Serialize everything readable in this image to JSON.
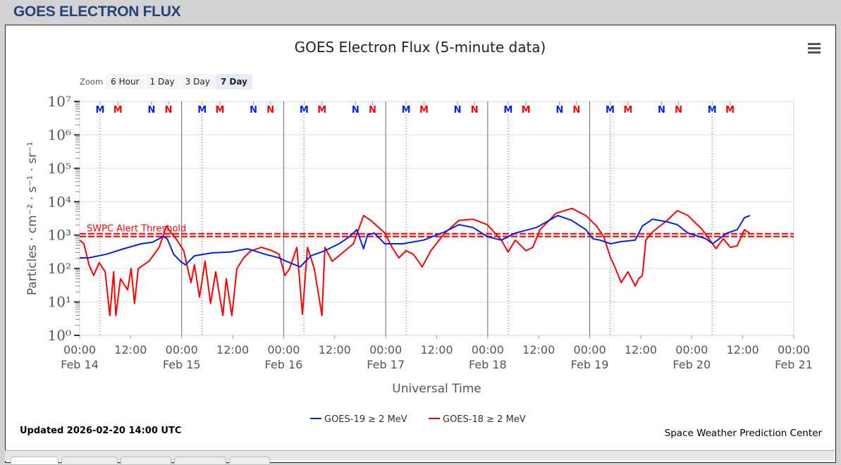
{
  "header": {
    "title": "GOES ELECTRON FLUX"
  },
  "zoom": {
    "label": "Zoom",
    "buttons": [
      "6 Hour",
      "1 Day",
      "3 Day",
      "7 Day"
    ],
    "selected": "7 Day"
  },
  "footer": {
    "updated": "Updated 2026-02-20 14:00 UTC",
    "credit": "Space Weather Prediction Center"
  },
  "colors": {
    "goes19": "#0022ee",
    "goes18": "#ff0000",
    "title_blue": "#25427a"
  },
  "chart_data": {
    "type": "line",
    "title": "GOES Electron Flux (5-minute data)",
    "xlabel": "Universal Time",
    "ylabel": "Particles · cm⁻² · s⁻¹ · sr⁻¹",
    "x_units": "hours since 2026-02-14 00:00 UTC",
    "xlim": [
      0,
      168
    ],
    "ylim": [
      1,
      10000000
    ],
    "yscale": "log",
    "y_ticks": [
      "10⁰",
      "10¹",
      "10²",
      "10³",
      "10⁴",
      "10⁵",
      "10⁶",
      "10⁷"
    ],
    "x_ticks": [
      {
        "t": "00:00",
        "d": "Feb 14"
      },
      {
        "t": "12:00",
        "d": ""
      },
      {
        "t": "00:00",
        "d": "Feb 15"
      },
      {
        "t": "12:00",
        "d": ""
      },
      {
        "t": "00:00",
        "d": "Feb 16"
      },
      {
        "t": "12:00",
        "d": ""
      },
      {
        "t": "00:00",
        "d": "Feb 17"
      },
      {
        "t": "12:00",
        "d": ""
      },
      {
        "t": "00:00",
        "d": "Feb 18"
      },
      {
        "t": "12:00",
        "d": ""
      },
      {
        "t": "00:00",
        "d": "Feb 19"
      },
      {
        "t": "12:00",
        "d": ""
      },
      {
        "t": "00:00",
        "d": "Feb 20"
      },
      {
        "t": "12:00",
        "d": ""
      },
      {
        "t": "00:00",
        "d": "Feb 21"
      }
    ],
    "threshold": {
      "label": "SWPC Alert Threshold",
      "value": 1000
    },
    "day_boundaries": [
      24,
      48,
      72,
      96,
      120
    ],
    "legend": {
      "placement": "bottom-center"
    },
    "markers": [
      {
        "label": "M",
        "sat": "goes19",
        "h": 4.8
      },
      {
        "label": "M",
        "sat": "goes18",
        "h": 9.0
      },
      {
        "label": "N",
        "sat": "goes19",
        "h": 16.9
      },
      {
        "label": "N",
        "sat": "goes18",
        "h": 20.9
      },
      {
        "label": "M",
        "sat": "goes19",
        "h": 28.8
      },
      {
        "label": "M",
        "sat": "goes18",
        "h": 33.0
      },
      {
        "label": "N",
        "sat": "goes19",
        "h": 40.9
      },
      {
        "label": "N",
        "sat": "goes18",
        "h": 44.9
      },
      {
        "label": "M",
        "sat": "goes19",
        "h": 52.8
      },
      {
        "label": "M",
        "sat": "goes18",
        "h": 57.0
      },
      {
        "label": "N",
        "sat": "goes19",
        "h": 64.9
      },
      {
        "label": "N",
        "sat": "goes18",
        "h": 68.9
      },
      {
        "label": "M",
        "sat": "goes19",
        "h": 76.8
      },
      {
        "label": "M",
        "sat": "goes18",
        "h": 81.0
      },
      {
        "label": "N",
        "sat": "goes19",
        "h": 88.9
      },
      {
        "label": "N",
        "sat": "goes18",
        "h": 92.9
      },
      {
        "label": "M",
        "sat": "goes19",
        "h": 100.8
      },
      {
        "label": "M",
        "sat": "goes18",
        "h": 105.0
      },
      {
        "label": "N",
        "sat": "goes19",
        "h": 112.9
      },
      {
        "label": "N",
        "sat": "goes18",
        "h": 116.9
      },
      {
        "label": "M",
        "sat": "goes19",
        "h": 124.8
      },
      {
        "label": "M",
        "sat": "goes18",
        "h": 129.0
      },
      {
        "label": "N",
        "sat": "goes19",
        "h": 136.9
      },
      {
        "label": "N",
        "sat": "goes18",
        "h": 140.9
      },
      {
        "label": "M",
        "sat": "goes19",
        "h": 148.8
      },
      {
        "label": "M",
        "sat": "goes18",
        "h": 153.0
      }
    ],
    "series": [
      {
        "name": "GOES-19 ≥ 2 MeV",
        "key": "goes19",
        "points": [
          [
            0,
            209
          ],
          [
            2.2,
            210
          ],
          [
            6.3,
            268
          ],
          [
            10.4,
            392
          ],
          [
            14.5,
            550
          ],
          [
            17.1,
            610
          ],
          [
            19.6,
            900
          ],
          [
            20.6,
            780
          ],
          [
            22.1,
            268
          ],
          [
            23.7,
            165
          ],
          [
            24.9,
            129
          ],
          [
            27.0,
            240
          ],
          [
            31.2,
            295
          ],
          [
            35.3,
            310
          ],
          [
            39.5,
            390
          ],
          [
            43.6,
            268
          ],
          [
            46.9,
            209
          ],
          [
            48.6,
            165
          ],
          [
            51.9,
            112
          ],
          [
            54.4,
            240
          ],
          [
            57.7,
            340
          ],
          [
            61.0,
            550
          ],
          [
            63.5,
            900
          ],
          [
            65.2,
            1450
          ],
          [
            66.8,
            390
          ],
          [
            67.7,
            1000
          ],
          [
            69.3,
            1150
          ],
          [
            71.8,
            550
          ],
          [
            76.0,
            550
          ],
          [
            80.9,
            710
          ],
          [
            85.9,
            1260
          ],
          [
            89.2,
            2050
          ],
          [
            92.5,
            1700
          ],
          [
            95.9,
            900
          ],
          [
            99.2,
            710
          ],
          [
            102.5,
            1150
          ],
          [
            107.5,
            1700
          ],
          [
            112.5,
            3850
          ],
          [
            115.8,
            2750
          ],
          [
            119.1,
            1450
          ],
          [
            120.7,
            780
          ],
          [
            122.4,
            710
          ],
          [
            124.9,
            550
          ],
          [
            127.4,
            640
          ],
          [
            130.7,
            710
          ],
          [
            132.4,
            1870
          ],
          [
            134.8,
            3000
          ],
          [
            138.2,
            2500
          ],
          [
            140.6,
            2050
          ],
          [
            143.1,
            1150
          ],
          [
            147.3,
            780
          ],
          [
            148.9,
            550
          ],
          [
            152.3,
            1150
          ],
          [
            154.7,
            1450
          ],
          [
            156.4,
            3330
          ],
          [
            157.7,
            3850
          ]
        ]
      },
      {
        "name": "GOES-18 ≥ 2 MeV",
        "key": "goes18",
        "points": [
          [
            0,
            710
          ],
          [
            1.0,
            550
          ],
          [
            2.2,
            129
          ],
          [
            3.3,
            62
          ],
          [
            4.6,
            150
          ],
          [
            6.0,
            80
          ],
          [
            7.1,
            3.9
          ],
          [
            8.0,
            80
          ],
          [
            8.5,
            3.9
          ],
          [
            9.6,
            49
          ],
          [
            11.3,
            23
          ],
          [
            12.1,
            100
          ],
          [
            12.9,
            9
          ],
          [
            13.8,
            100
          ],
          [
            16.3,
            165
          ],
          [
            18.7,
            430
          ],
          [
            20.4,
            1870
          ],
          [
            21.6,
            1150
          ],
          [
            22.9,
            710
          ],
          [
            24.5,
            340
          ],
          [
            25.4,
            100
          ],
          [
            26.2,
            38
          ],
          [
            27.0,
            129
          ],
          [
            28.2,
            14
          ],
          [
            29.5,
            165
          ],
          [
            30.8,
            9
          ],
          [
            32.0,
            80
          ],
          [
            33.7,
            3.9
          ],
          [
            34.5,
            49
          ],
          [
            35.8,
            3.9
          ],
          [
            37.0,
            100
          ],
          [
            38.6,
            209
          ],
          [
            40.3,
            340
          ],
          [
            42.8,
            430
          ],
          [
            45.3,
            340
          ],
          [
            46.9,
            268
          ],
          [
            48.3,
            62
          ],
          [
            49.4,
            100
          ],
          [
            51.1,
            430
          ],
          [
            52.4,
            4.3
          ],
          [
            53.6,
            430
          ],
          [
            55.2,
            100
          ],
          [
            57.0,
            3.9
          ],
          [
            57.7,
            430
          ],
          [
            59.4,
            165
          ],
          [
            61.0,
            240
          ],
          [
            64.4,
            550
          ],
          [
            66.8,
            3850
          ],
          [
            68.5,
            2750
          ],
          [
            71.8,
            1150
          ],
          [
            73.5,
            430
          ],
          [
            75.1,
            209
          ],
          [
            76.8,
            340
          ],
          [
            78.5,
            268
          ],
          [
            80.6,
            112
          ],
          [
            82.6,
            340
          ],
          [
            85.9,
            1150
          ],
          [
            89.2,
            2750
          ],
          [
            92.5,
            3000
          ],
          [
            95.9,
            2050
          ],
          [
            99.2,
            710
          ],
          [
            100.8,
            310
          ],
          [
            102.5,
            710
          ],
          [
            105.0,
            340
          ],
          [
            106.6,
            430
          ],
          [
            108.3,
            1450
          ],
          [
            112.1,
            4500
          ],
          [
            115.8,
            6300
          ],
          [
            119.1,
            3850
          ],
          [
            121.6,
            1870
          ],
          [
            123.3,
            900
          ],
          [
            124.9,
            209
          ],
          [
            125.7,
            129
          ],
          [
            127.4,
            38
          ],
          [
            129.0,
            80
          ],
          [
            130.7,
            30
          ],
          [
            131.5,
            49
          ],
          [
            132.4,
            62
          ],
          [
            133.2,
            710
          ],
          [
            134.8,
            1260
          ],
          [
            138.2,
            2750
          ],
          [
            140.6,
            5400
          ],
          [
            143.1,
            3850
          ],
          [
            146.5,
            1450
          ],
          [
            148.9,
            550
          ],
          [
            149.7,
            390
          ],
          [
            151.4,
            780
          ],
          [
            153.1,
            430
          ],
          [
            154.7,
            480
          ],
          [
            156.4,
            1450
          ],
          [
            157.6,
            1150
          ]
        ]
      }
    ]
  }
}
